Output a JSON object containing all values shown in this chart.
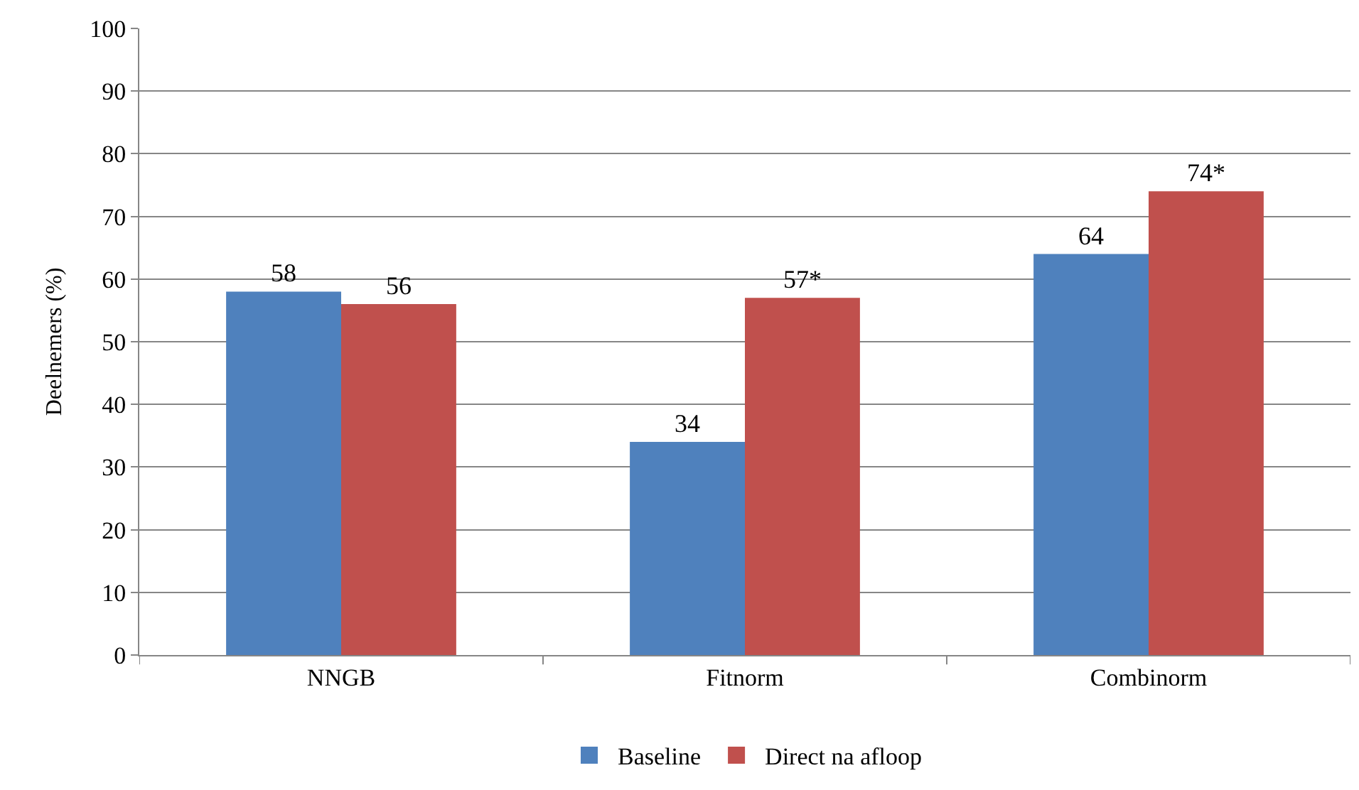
{
  "chart_data": {
    "type": "bar",
    "ylabel": "Deelnemers (%)",
    "categories": [
      "NNGB",
      "Fitnorm",
      "Combinorm"
    ],
    "series": [
      {
        "name": "Baseline",
        "color": "#4f81bd",
        "values": [
          58,
          34,
          64
        ],
        "value_labels": [
          "58",
          "34",
          "64"
        ]
      },
      {
        "name": "Direct na afloop",
        "color": "#c0504d",
        "values": [
          56,
          57,
          74
        ],
        "value_labels": [
          "56",
          "57*",
          "74*"
        ]
      }
    ],
    "ylim": [
      0,
      100
    ],
    "yticks": [
      0,
      10,
      20,
      30,
      40,
      50,
      60,
      70,
      80,
      90,
      100
    ],
    "grid": "y",
    "legend": "bottom"
  }
}
